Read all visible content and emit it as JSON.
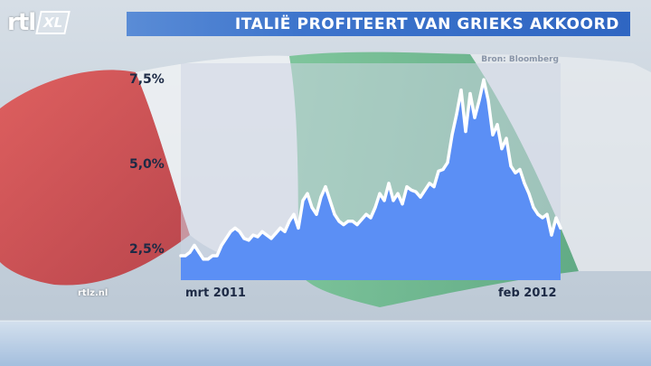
{
  "header": {
    "logo_text": "rtl",
    "logo_badge": "XL",
    "title": "ITALIË PROFITEERT VAN GRIEKS AKKOORD"
  },
  "source_note": "Bron: Bloomberg",
  "watermark": "rtlz.nl",
  "colors": {
    "title_bar": "#3d74cc",
    "area_fill": "#5b8ff5",
    "line": "#ffffff",
    "flag_red": "#d23a3a",
    "flag_green": "#3fae6a"
  },
  "chart_data": {
    "type": "area",
    "title": "ITALIË PROFITEERT VAN GRIEKS AKKOORD",
    "xlabel": "",
    "ylabel": "",
    "ylim": [
      1.7,
      8.2
    ],
    "ytick_values": [
      2.5,
      5.0,
      7.5
    ],
    "ytick_labels": [
      "2,5%",
      "5,0%",
      "7,5%"
    ],
    "xtick_labels": [
      "mrt 2011",
      "feb 2012"
    ],
    "grid": false,
    "legend": "none",
    "x_range": [
      "2011-03",
      "2012-02"
    ],
    "series": [
      {
        "values": [
          2.5,
          2.5,
          2.6,
          2.8,
          2.6,
          2.4,
          2.4,
          2.5,
          2.5,
          2.8,
          3.0,
          3.2,
          3.3,
          3.2,
          3.0,
          2.95,
          3.1,
          3.05,
          3.2,
          3.1,
          3.0,
          3.15,
          3.3,
          3.2,
          3.5,
          3.7,
          3.3,
          4.1,
          4.3,
          3.9,
          3.7,
          4.2,
          4.5,
          4.1,
          3.7,
          3.5,
          3.4,
          3.5,
          3.5,
          3.4,
          3.55,
          3.7,
          3.6,
          3.9,
          4.3,
          4.1,
          4.6,
          4.1,
          4.3,
          4.0,
          4.5,
          4.4,
          4.35,
          4.2,
          4.4,
          4.6,
          4.5,
          4.95,
          5.0,
          5.2,
          6.0,
          6.6,
          7.3,
          6.1,
          7.2,
          6.5,
          7.0,
          7.6,
          7.0,
          6.0,
          6.3,
          5.6,
          5.9,
          5.1,
          4.9,
          5.0,
          4.6,
          4.3,
          3.9,
          3.7,
          3.6,
          3.7,
          3.1,
          3.6,
          3.3
        ]
      }
    ]
  }
}
